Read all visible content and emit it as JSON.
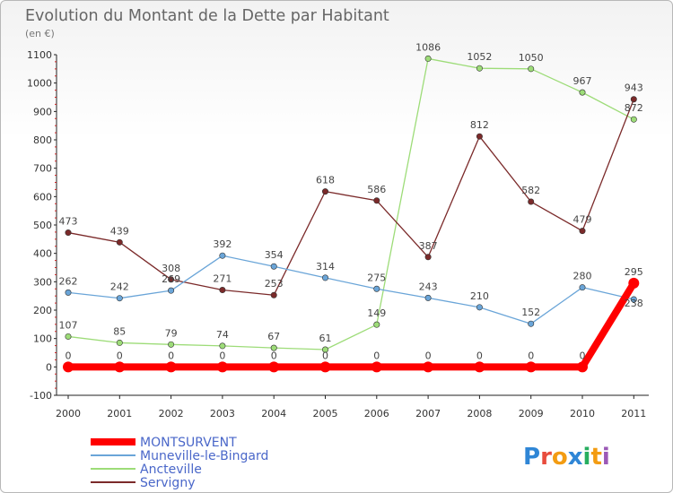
{
  "chart_data": {
    "type": "line",
    "title": "Evolution du Montant de la Dette par Habitant",
    "subtitle": "(en €)",
    "xlabel": "",
    "ylabel": "",
    "categories": [
      "2000",
      "2001",
      "2002",
      "2003",
      "2004",
      "2005",
      "2006",
      "2007",
      "2008",
      "2009",
      "2010",
      "2011"
    ],
    "ylim": [
      -100,
      1100
    ],
    "yticks": [
      -100,
      0,
      100,
      200,
      300,
      400,
      500,
      600,
      700,
      800,
      900,
      1000,
      1100
    ],
    "grid": false,
    "legend_position": "bottom-left",
    "series": [
      {
        "name": "MONTSURVENT",
        "color": "#ff0000",
        "values": [
          0,
          0,
          0,
          0,
          0,
          0,
          0,
          0,
          0,
          0,
          0,
          295
        ]
      },
      {
        "name": "Muneville-le-Bingard",
        "color": "#6aa5d8",
        "values": [
          262,
          242,
          269,
          392,
          354,
          314,
          275,
          243,
          210,
          152,
          280,
          238
        ]
      },
      {
        "name": "Ancteville",
        "color": "#9ddc78",
        "values": [
          107,
          85,
          79,
          74,
          67,
          61,
          149,
          1086,
          1052,
          1050,
          967,
          872
        ]
      },
      {
        "name": "Servigny",
        "color": "#7b2a2a",
        "values": [
          473,
          439,
          308,
          271,
          253,
          618,
          586,
          387,
          812,
          582,
          479,
          943
        ]
      }
    ]
  },
  "branding": {
    "logo_text": "Proxiti",
    "logo_colors": [
      "#2f86d6",
      "#e84c3d",
      "#f39c12",
      "#2f86d6",
      "#27ae60",
      "#f39c12",
      "#9b59b6"
    ]
  }
}
